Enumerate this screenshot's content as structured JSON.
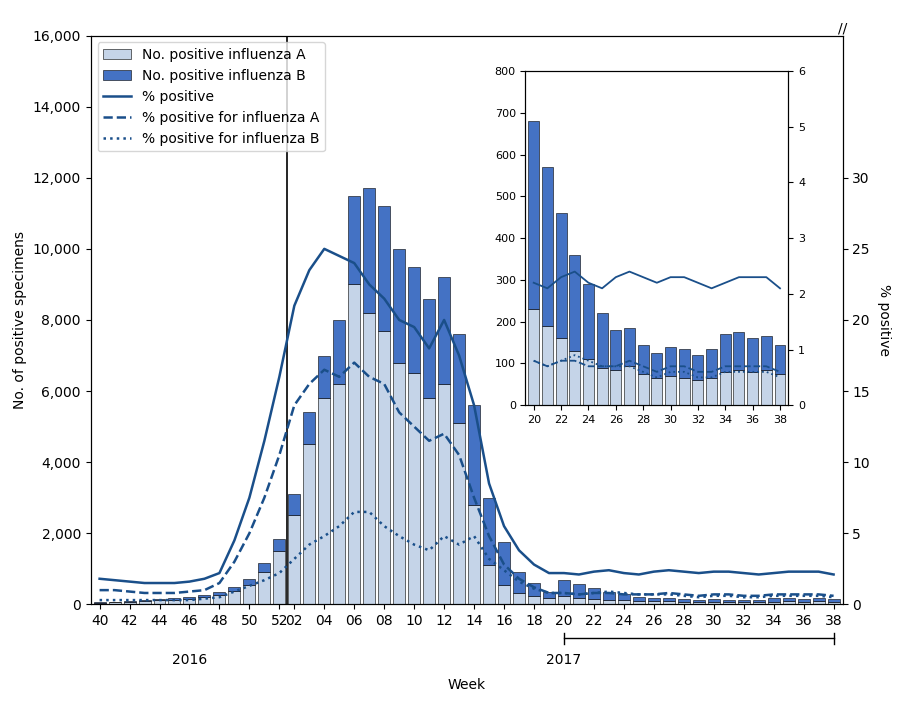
{
  "chart_data": [
    {
      "type": "bar",
      "stacked": true,
      "categories": [
        "40",
        null,
        "42",
        null,
        "44",
        null,
        "46",
        null,
        "48",
        null,
        "50",
        null,
        "52",
        "02",
        null,
        "04",
        null,
        "06",
        null,
        "08",
        null,
        "10",
        null,
        "12",
        null,
        "14",
        null,
        "16",
        null,
        "18",
        null,
        "20",
        null,
        "22",
        null,
        "24",
        null,
        "26",
        null,
        "28",
        null,
        "30",
        null,
        "32",
        null,
        "34",
        null,
        "36",
        null,
        "38"
      ],
      "x_label": "Week",
      "y_label": "No. of positive specimens",
      "y2_label": "% positive",
      "ylim": [
        0,
        16000
      ],
      "yticks": [
        0,
        {
          "value": 2000,
          "label": "2,000"
        },
        {
          "value": 4000,
          "label": "4,000"
        },
        {
          "value": 6000,
          "label": "6,000"
        },
        {
          "value": 8000,
          "label": "8,000"
        },
        {
          "value": 10000,
          "label": "10,000"
        },
        {
          "value": 12000,
          "label": "12,000"
        },
        {
          "value": 14000,
          "label": "14,000"
        },
        {
          "value": 16000,
          "label": "16,000"
        }
      ],
      "y2lim": [
        0,
        40.0
      ],
      "y2ticks": [
        0,
        5,
        10,
        15,
        20,
        25,
        30
      ],
      "legend": "upper left",
      "annotations": [
        "2016",
        "2017",
        "//"
      ],
      "series": [
        {
          "name": "No. positive influenza A",
          "type": "bar",
          "color": "#c5d4e8",
          "values": [
            50,
            60,
            70,
            90,
            110,
            130,
            160,
            200,
            260,
            380,
            550,
            900,
            1500,
            2500,
            4500,
            5800,
            6200,
            9000,
            8200,
            7700,
            6800,
            6500,
            5800,
            6200,
            5100,
            2800,
            1100,
            550,
            320,
            230,
            170,
            230,
            190,
            160,
            130,
            110,
            90,
            85,
            95,
            75,
            65,
            70,
            65,
            60,
            65,
            80,
            85,
            80,
            85,
            75
          ]
        },
        {
          "name": "No. positive influenza B",
          "type": "bar",
          "color": "#4472c4",
          "values": [
            15,
            20,
            20,
            25,
            35,
            45,
            60,
            70,
            90,
            120,
            160,
            250,
            350,
            600,
            900,
            1200,
            1800,
            2500,
            3500,
            3500,
            3200,
            3000,
            2800,
            3000,
            2500,
            2800,
            1900,
            1200,
            600,
            380,
            190,
            450,
            380,
            300,
            230,
            180,
            130,
            95,
            90,
            70,
            60,
            70,
            70,
            60,
            70,
            90,
            90,
            80,
            80,
            70
          ]
        },
        {
          "name": "% positive",
          "type": "line",
          "axis": "y2",
          "color": "#1a4f8a",
          "line_style": "solid",
          "values": [
            1.8,
            1.7,
            1.6,
            1.5,
            1.5,
            1.5,
            1.6,
            1.8,
            2.2,
            4.5,
            7.5,
            11.5,
            16.0,
            21.0,
            23.5,
            25.0,
            24.5,
            24.0,
            22.5,
            21.5,
            20.0,
            19.5,
            18.0,
            20.0,
            17.5,
            14.0,
            8.5,
            5.5,
            3.8,
            2.8,
            2.2,
            2.2,
            2.1,
            2.3,
            2.4,
            2.2,
            2.1,
            2.3,
            2.4,
            2.3,
            2.2,
            2.3,
            2.3,
            2.2,
            2.1,
            2.2,
            2.3,
            2.3,
            2.3,
            2.1
          ]
        },
        {
          "name": "% positive for influenza A",
          "type": "line",
          "axis": "y2",
          "color": "#1a4f8a",
          "line_style": "dashed",
          "values": [
            1.0,
            1.0,
            0.9,
            0.8,
            0.8,
            0.8,
            0.9,
            1.0,
            1.5,
            3.0,
            5.0,
            7.5,
            10.5,
            14.0,
            15.5,
            16.5,
            16.0,
            17.0,
            16.0,
            15.5,
            13.5,
            12.5,
            11.5,
            12.0,
            10.5,
            7.5,
            4.8,
            2.8,
            1.8,
            1.2,
            0.8,
            0.8,
            0.7,
            0.8,
            0.8,
            0.7,
            0.7,
            0.7,
            0.8,
            0.7,
            0.6,
            0.7,
            0.7,
            0.6,
            0.6,
            0.7,
            0.7,
            0.7,
            0.7,
            0.6
          ]
        },
        {
          "name": "% positive for influenza B",
          "type": "line",
          "axis": "y2",
          "color": "#1a4f8a",
          "line_style": "dotted",
          "values": [
            0.3,
            0.3,
            0.3,
            0.3,
            0.3,
            0.3,
            0.3,
            0.4,
            0.5,
            0.9,
            1.3,
            1.7,
            2.2,
            3.2,
            4.2,
            4.8,
            5.5,
            6.5,
            6.5,
            5.5,
            4.8,
            4.2,
            3.8,
            4.8,
            4.2,
            4.8,
            3.2,
            2.4,
            1.6,
            1.1,
            0.8,
            0.8,
            0.7,
            0.8,
            0.9,
            0.8,
            0.7,
            0.7,
            0.7,
            0.6,
            0.5,
            0.6,
            0.6,
            0.5,
            0.5,
            0.6,
            0.6,
            0.6,
            0.6,
            0.5
          ]
        }
      ]
    },
    {
      "type": "bar",
      "stacked": true,
      "categories": [
        "20",
        null,
        "22",
        null,
        "24",
        null,
        "26",
        null,
        "28",
        null,
        "30",
        null,
        "32",
        null,
        "34",
        null,
        "36",
        null,
        "38"
      ],
      "ylim": [
        0,
        800
      ],
      "yticks": [
        0,
        100,
        200,
        300,
        400,
        500,
        600,
        700,
        800
      ],
      "y2lim": [
        0,
        6
      ],
      "y2ticks": [
        0,
        1,
        2,
        3,
        4,
        5,
        6
      ],
      "series": [
        {
          "name": "No. positive influenza A",
          "type": "bar",
          "color": "#c5d4e8",
          "values": [
            230,
            190,
            160,
            130,
            110,
            90,
            85,
            95,
            75,
            65,
            70,
            65,
            60,
            65,
            80,
            85,
            80,
            85,
            75
          ]
        },
        {
          "name": "No. positive influenza B",
          "type": "bar",
          "color": "#4472c4",
          "values": [
            450,
            380,
            300,
            230,
            180,
            130,
            95,
            90,
            70,
            60,
            70,
            70,
            60,
            70,
            90,
            90,
            80,
            80,
            70
          ]
        },
        {
          "name": "% positive",
          "type": "line",
          "axis": "y2",
          "color": "#1a4f8a",
          "line_style": "solid",
          "values": [
            2.2,
            2.1,
            2.3,
            2.4,
            2.2,
            2.1,
            2.3,
            2.4,
            2.3,
            2.2,
            2.3,
            2.3,
            2.2,
            2.1,
            2.2,
            2.3,
            2.3,
            2.3,
            2.1
          ]
        },
        {
          "name": "% positive for influenza A",
          "type": "line",
          "axis": "y2",
          "color": "#1a4f8a",
          "line_style": "dashed",
          "values": [
            0.8,
            0.7,
            0.8,
            0.8,
            0.7,
            0.7,
            0.7,
            0.8,
            0.7,
            0.6,
            0.7,
            0.7,
            0.6,
            0.6,
            0.7,
            0.7,
            0.7,
            0.7,
            0.6
          ]
        },
        {
          "name": "% positive for influenza B",
          "type": "line",
          "axis": "y2",
          "color": "#1a4f8a",
          "line_style": "dotted",
          "values": [
            0.8,
            0.7,
            0.8,
            0.9,
            0.8,
            0.7,
            0.7,
            0.7,
            0.6,
            0.5,
            0.6,
            0.6,
            0.5,
            0.5,
            0.6,
            0.6,
            0.6,
            0.6,
            0.5
          ]
        }
      ]
    }
  ]
}
